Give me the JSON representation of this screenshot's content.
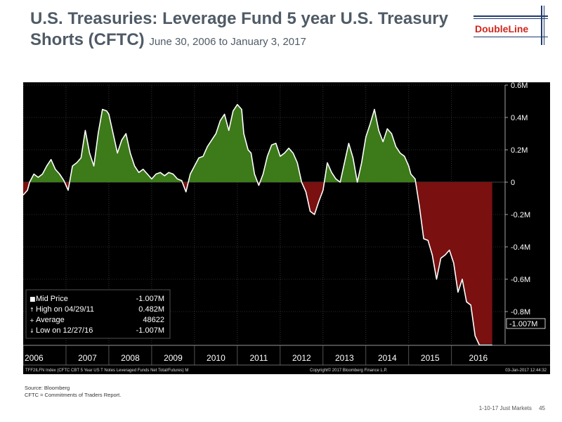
{
  "header": {
    "title": "U.S. Treasuries: Leverage Fund 5 year U.S. Treasury Shorts (CFTC)",
    "title_line1": "U.S. Treasuries: Leverage Fund 5 year U.S. Treasury",
    "title_line2": "Shorts (CFTC)",
    "subtitle": "June 30, 2006 to January 3, 2017"
  },
  "logo": {
    "text": "DoubleLine",
    "color": "#d0271d"
  },
  "legend": {
    "rows": [
      {
        "icon": "square-icon",
        "label": "Mid Price",
        "value": "-1.007M"
      },
      {
        "icon": "up-arrow-icon",
        "label": "High on 04/29/11",
        "value": "0.482M"
      },
      {
        "icon": "plus-icon",
        "label": "Average",
        "value": "48622"
      },
      {
        "icon": "down-arrow-icon",
        "label": "Low on 12/27/16",
        "value": "-1.007M"
      }
    ]
  },
  "last_value_label": "-1.007M",
  "bottom_bar": {
    "left": "TFF2ILFN Index (CFTC CBT 5 Year US T Notes Leveraged Funds Net Total/Futures)  M",
    "center": "Copyright© 2017 Bloomberg Finance L.P.",
    "right": "03-Jan-2017 12:44:32"
  },
  "notes": {
    "source": "Source: Bloomberg",
    "cftc": "CFTC = Commitments of Traders Report."
  },
  "footer": {
    "text": "1-10-17 Just Markets",
    "page": "45"
  },
  "colors": {
    "positive_fill": "#3d7a1a",
    "negative_fill": "#7a1010",
    "line": "#ffffff",
    "background": "#000000"
  },
  "chart_data": {
    "type": "area",
    "title": "U.S. Treasuries: Leverage Fund 5 year U.S. Treasury Shorts (CFTC)",
    "ylabel": "",
    "ylim": [
      -1.0,
      0.6
    ],
    "yticks": [
      0.6,
      0.4,
      0.2,
      0,
      -0.2,
      -0.4,
      -0.6,
      -0.8
    ],
    "ytick_labels": [
      "0.6M",
      "0.4M",
      "0.2M",
      "0",
      "-0.2M",
      "-0.4M",
      "-0.6M",
      "-0.8M"
    ],
    "xlim": [
      2006.0,
      2017.25
    ],
    "xticks": [
      2006,
      2007,
      2008,
      2009,
      2010,
      2011,
      2012,
      2013,
      2014,
      2015,
      2016
    ],
    "xtick_labels": [
      "2006",
      "2007",
      "2008",
      "2009",
      "2010",
      "2011",
      "2012",
      "2013",
      "2014",
      "2015",
      "2016"
    ],
    "grid": true,
    "series": [
      {
        "name": "Mid Price",
        "x": [
          2006.0,
          2006.1,
          2006.15,
          2006.25,
          2006.35,
          2006.45,
          2006.55,
          2006.65,
          2006.75,
          2006.85,
          2006.95,
          2007.05,
          2007.15,
          2007.25,
          2007.35,
          2007.45,
          2007.55,
          2007.65,
          2007.75,
          2007.85,
          2007.95,
          2008.0,
          2008.1,
          2008.2,
          2008.3,
          2008.4,
          2008.5,
          2008.6,
          2008.7,
          2008.8,
          2008.9,
          2009.0,
          2009.1,
          2009.2,
          2009.3,
          2009.4,
          2009.5,
          2009.6,
          2009.7,
          2009.8,
          2009.9,
          2010.0,
          2010.1,
          2010.2,
          2010.3,
          2010.4,
          2010.5,
          2010.6,
          2010.7,
          2010.8,
          2010.9,
          2011.0,
          2011.1,
          2011.15,
          2011.25,
          2011.32,
          2011.4,
          2011.5,
          2011.6,
          2011.7,
          2011.8,
          2011.9,
          2012.0,
          2012.1,
          2012.2,
          2012.3,
          2012.4,
          2012.5,
          2012.6,
          2012.7,
          2012.8,
          2012.9,
          2013.0,
          2013.1,
          2013.2,
          2013.3,
          2013.4,
          2013.5,
          2013.6,
          2013.7,
          2013.8,
          2013.9,
          2014.0,
          2014.1,
          2014.2,
          2014.3,
          2014.4,
          2014.5,
          2014.6,
          2014.7,
          2014.8,
          2014.9,
          2015.0,
          2015.05,
          2015.15,
          2015.25,
          2015.35,
          2015.45,
          2015.55,
          2015.65,
          2015.75,
          2015.85,
          2015.95,
          2016.05,
          2016.15,
          2016.25,
          2016.35,
          2016.45,
          2016.55,
          2016.65,
          2016.75,
          2016.85,
          2016.95
        ],
        "values": [
          -0.08,
          -0.05,
          0.0,
          0.05,
          0.03,
          0.05,
          0.1,
          0.14,
          0.08,
          0.05,
          0.01,
          -0.05,
          0.1,
          0.12,
          0.15,
          0.32,
          0.18,
          0.1,
          0.3,
          0.45,
          0.44,
          0.42,
          0.3,
          0.18,
          0.26,
          0.3,
          0.18,
          0.1,
          0.06,
          0.08,
          0.05,
          0.02,
          0.05,
          0.06,
          0.04,
          0.06,
          0.05,
          0.02,
          0.01,
          -0.06,
          0.05,
          0.1,
          0.15,
          0.16,
          0.22,
          0.26,
          0.3,
          0.38,
          0.42,
          0.32,
          0.44,
          0.48,
          0.45,
          0.3,
          0.2,
          0.18,
          0.05,
          -0.02,
          0.05,
          0.16,
          0.23,
          0.24,
          0.16,
          0.18,
          0.21,
          0.18,
          0.12,
          0.0,
          -0.06,
          -0.18,
          -0.2,
          -0.12,
          -0.05,
          0.12,
          0.06,
          0.02,
          0.0,
          0.12,
          0.24,
          0.15,
          0.0,
          0.12,
          0.28,
          0.36,
          0.45,
          0.32,
          0.25,
          0.33,
          0.3,
          0.22,
          0.18,
          0.16,
          0.1,
          0.05,
          0.02,
          -0.15,
          -0.35,
          -0.36,
          -0.45,
          -0.6,
          -0.47,
          -0.45,
          -0.42,
          -0.5,
          -0.68,
          -0.6,
          -0.74,
          -0.76,
          -0.95,
          -1.007,
          -1.007,
          -1.007,
          -1.007
        ]
      }
    ]
  }
}
